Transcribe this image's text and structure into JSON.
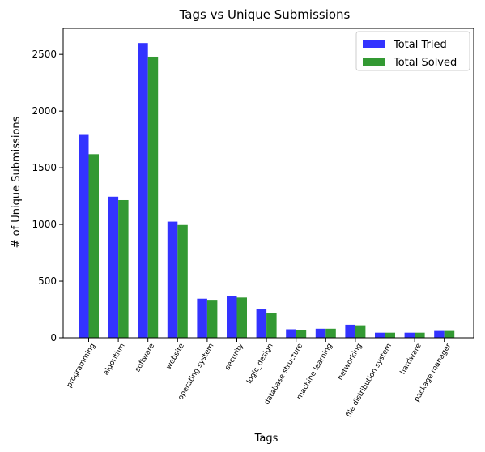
{
  "chart_data": {
    "type": "bar",
    "title": "Tags vs Unique Submissions",
    "xlabel": "Tags",
    "ylabel": "# of Unique Submissions",
    "categories": [
      "programming",
      "algorithm",
      "software",
      "website",
      "operating system",
      "security",
      "logic_design",
      "database structure",
      "machine learning",
      "networking",
      "file distribution system",
      "hardware",
      "package manager"
    ],
    "series": [
      {
        "name": "Total Tried",
        "color": "#3333ff",
        "values": [
          1790,
          1245,
          2600,
          1025,
          345,
          370,
          250,
          75,
          80,
          115,
          45,
          45,
          60
        ]
      },
      {
        "name": "Total Solved",
        "color": "#339933",
        "values": [
          1620,
          1215,
          2480,
          995,
          335,
          355,
          215,
          65,
          80,
          110,
          45,
          45,
          60
        ]
      }
    ],
    "yticks": [
      0,
      500,
      1000,
      1500,
      2000,
      2500
    ],
    "ylim": [
      0,
      2730
    ],
    "legend_position": "top-right",
    "grid": false
  }
}
